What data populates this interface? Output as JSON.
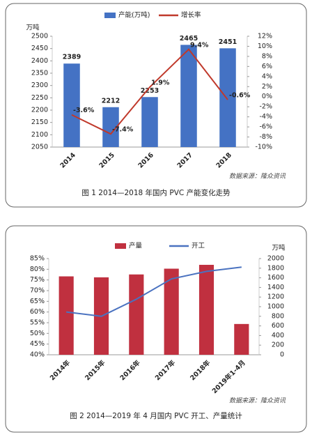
{
  "chart_data": [
    {
      "type": "bar",
      "legend": "top",
      "yaxis_label": "万吨",
      "categories": [
        "2014",
        "2015",
        "2016",
        "2017",
        "2018"
      ],
      "series": [
        {
          "name": "产能(万吨)",
          "type": "bar",
          "color": "#4472c4",
          "data_labels": true,
          "values": [
            2389,
            2212,
            2253,
            2465,
            2451
          ]
        },
        {
          "name": "增长率",
          "type": "line",
          "color": "#c0392b",
          "axis": "y2",
          "values": [
            -3.6,
            -7.4,
            1.9,
            9.4,
            -0.6
          ],
          "value_labels": [
            "-3.6%",
            "-7.4%",
            "1.9%",
            "9.4%",
            "-0.6%"
          ]
        }
      ],
      "ylim": [
        2050,
        2500
      ],
      "yticks": [
        2050,
        2100,
        2150,
        2200,
        2250,
        2300,
        2350,
        2400,
        2450,
        2500
      ],
      "y2lim": [
        -10,
        12
      ],
      "y2ticks": [
        {
          "value": -10,
          "label": "-10%"
        },
        {
          "value": -8,
          "label": "-8%"
        },
        {
          "value": -6,
          "label": "-6%"
        },
        {
          "value": -4,
          "label": "-4%"
        },
        {
          "value": -2,
          "label": "-2%"
        },
        {
          "value": 0,
          "label": "0%"
        },
        {
          "value": 2,
          "label": "2%"
        },
        {
          "value": 4,
          "label": "4%"
        },
        {
          "value": 6,
          "label": "6%"
        },
        {
          "value": 8,
          "label": "8%"
        },
        {
          "value": 10,
          "label": "10%"
        },
        {
          "value": 12,
          "label": "12%"
        }
      ],
      "source": "数据来源：隆众资讯",
      "caption": "图 1  2014—2018 年国内 PVC 产能变化走势"
    },
    {
      "type": "bar",
      "legend": "top",
      "y2axis_label": "万吨",
      "categories": [
        "2014年",
        "2015年",
        "2016年",
        "2017年",
        "2018年",
        "2019年1-4月"
      ],
      "series": [
        {
          "name": "产量",
          "type": "bar",
          "color": "#c0303f",
          "axis": "y2",
          "values": [
            1630,
            1610,
            1670,
            1790,
            1870,
            640
          ]
        },
        {
          "name": "开工",
          "type": "line",
          "color": "#4a72c0",
          "values": [
            60,
            58,
            66,
            75.5,
            79,
            81
          ]
        }
      ],
      "ylim": [
        40,
        85
      ],
      "yticks": [
        {
          "value": 40,
          "label": "40%"
        },
        {
          "value": 45,
          "label": "45%"
        },
        {
          "value": 50,
          "label": "50%"
        },
        {
          "value": 55,
          "label": "55%"
        },
        {
          "value": 60,
          "label": "60%"
        },
        {
          "value": 65,
          "label": "65%"
        },
        {
          "value": 70,
          "label": "70%"
        },
        {
          "value": 75,
          "label": "75%"
        },
        {
          "value": 80,
          "label": "80%"
        },
        {
          "value": 85,
          "label": "85%"
        }
      ],
      "y2lim": [
        0,
        2000
      ],
      "y2ticks": [
        0,
        200,
        400,
        600,
        800,
        1000,
        1200,
        1400,
        1600,
        1800,
        2000
      ],
      "source": "数据来源：隆众资讯",
      "caption": "图 2  2014—2019 年 4 月国内 PVC 开工、产量统计"
    }
  ]
}
